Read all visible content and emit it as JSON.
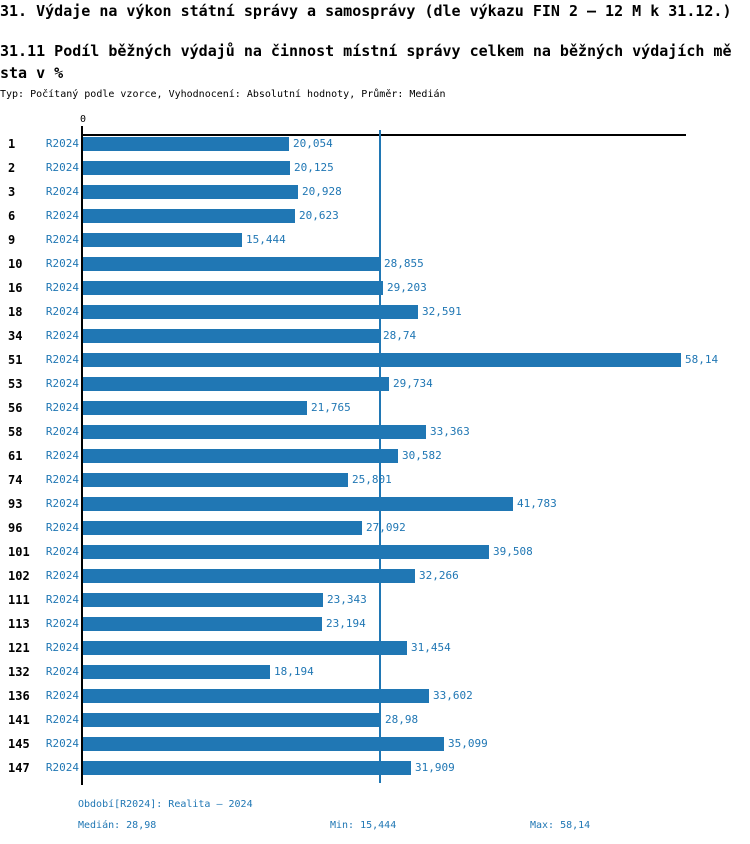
{
  "header": {
    "title": "31. Výdaje na výkon státní správy a samosprávy (dle výkazu FIN 2 — 12 M k 31.12.)",
    "subtitle": "31.11 Podíl běžných výdajů na činnost místní správy celkem na běžných výdajích města v %",
    "meta": "Typ: Počítaný podle vzorce, Vyhodnocení: Absolutní hodnoty, Průměr: Medián"
  },
  "chart_data": {
    "type": "bar",
    "orientation": "horizontal",
    "x_origin_label": "0",
    "series_label": "R2024",
    "categories": [
      "1",
      "2",
      "3",
      "6",
      "9",
      "10",
      "16",
      "18",
      "34",
      "51",
      "53",
      "56",
      "58",
      "61",
      "74",
      "93",
      "96",
      "101",
      "102",
      "111",
      "113",
      "121",
      "132",
      "136",
      "141",
      "145",
      "147"
    ],
    "values": [
      20.054,
      20.125,
      20.928,
      20.623,
      15.444,
      28.855,
      29.203,
      32.591,
      28.74,
      58.14,
      29.734,
      21.765,
      33.363,
      30.582,
      25.801,
      41.783,
      27.092,
      39.508,
      32.266,
      23.343,
      23.194,
      31.454,
      18.194,
      33.602,
      28.98,
      35.099,
      31.909
    ],
    "value_labels": [
      "20,054",
      "20,125",
      "20,928",
      "20,623",
      "15,444",
      "28,855",
      "29,203",
      "32,591",
      "28,74",
      "58,14",
      "29,734",
      "21,765",
      "33,363",
      "30,582",
      "25,801",
      "41,783",
      "27,092",
      "39,508",
      "32,266",
      "23,343",
      "23,194",
      "31,454",
      "18,194",
      "33,602",
      "28,98",
      "35,099",
      "31,909"
    ],
    "xlim": [
      0,
      58.14
    ],
    "median": 28.98,
    "min": 15.444,
    "max": 58.14,
    "grid": false,
    "median_line": true,
    "bar_color": "#2077b4"
  },
  "footer": {
    "period": "Období[R2024]: Realita — 2024",
    "median": "Medián: 28,98",
    "min": "Min: 15,444",
    "max": "Max: 58,14"
  }
}
